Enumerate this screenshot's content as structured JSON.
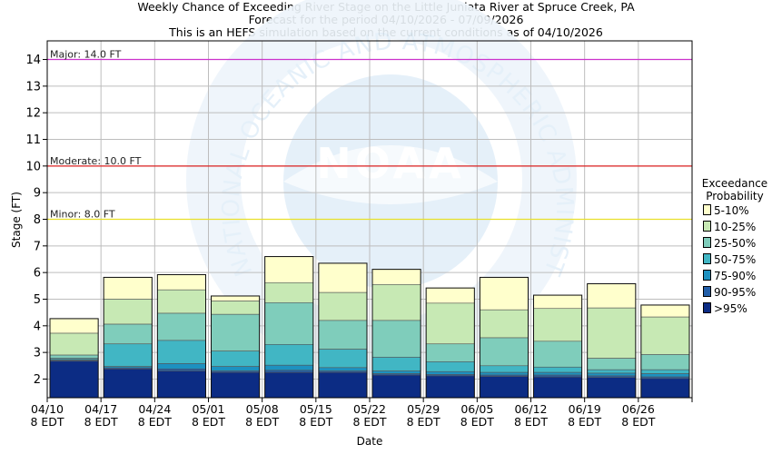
{
  "header": {
    "title_line1": "Weekly Chance of Exceeding River Stage on the Little Juniata River at Spruce Creek, PA",
    "title_line2": "Forecast for the period 04/10/2026 - 07/09/2026",
    "title_line3": "This is an HEFS simulation based on the current conditions as of 04/10/2026"
  },
  "watermark": {
    "arc_text_top": "NATIONAL OCEANIC AND ATMOSPHERIC ADMINISTRATION",
    "arc_text_left": "U.S. DEPARTMENT OF COMMERCE",
    "logo_text": "NOAA"
  },
  "legend": {
    "title_line1": "Exceedance",
    "title_line2": "Probability",
    "items": [
      {
        "label": "5-10%",
        "color": "#FFFFCC"
      },
      {
        "label": "10-25%",
        "color": "#C7E9B4"
      },
      {
        "label": "25-50%",
        "color": "#7FCDBB"
      },
      {
        "label": "50-75%",
        "color": "#41B6C4"
      },
      {
        "label": "75-90%",
        "color": "#1D91C0"
      },
      {
        "label": "90-95%",
        "color": "#225EA8"
      },
      {
        "label": ">95%",
        "color": "#0C2C84"
      }
    ]
  },
  "chart_data": {
    "type": "bar",
    "title": "Weekly Chance of Exceeding River Stage on the Little Juniata River at Spruce Creek, PA",
    "xlabel": "Date",
    "ylabel": "Stage (FT)",
    "ylim": [
      1.3,
      14.7
    ],
    "yticks": [
      2,
      3,
      4,
      5,
      6,
      7,
      8,
      9,
      10,
      11,
      12,
      13,
      14
    ],
    "grid": true,
    "legend_position": "right",
    "x_tick_labels": [
      {
        "line1": "04/10",
        "line2": "8 EDT"
      },
      {
        "line1": "04/17",
        "line2": "8 EDT"
      },
      {
        "line1": "04/24",
        "line2": "8 EDT"
      },
      {
        "line1": "05/01",
        "line2": "8 EDT"
      },
      {
        "line1": "05/08",
        "line2": "8 EDT"
      },
      {
        "line1": "05/15",
        "line2": "8 EDT"
      },
      {
        "line1": "05/22",
        "line2": "8 EDT"
      },
      {
        "line1": "05/29",
        "line2": "8 EDT"
      },
      {
        "line1": "06/05",
        "line2": "8 EDT"
      },
      {
        "line1": "06/12",
        "line2": "8 EDT"
      },
      {
        "line1": "06/19",
        "line2": "8 EDT"
      },
      {
        "line1": "06/26",
        "line2": "8 EDT"
      }
    ],
    "flood_levels": [
      {
        "label": "Major: 14.0 FT",
        "value": 14.0,
        "color": "#CC33CC"
      },
      {
        "label": "Moderate: 10.0 FT",
        "value": 10.0,
        "color": "#DD2222"
      },
      {
        "label": "Minor: 8.0 FT",
        "value": 8.0,
        "color": "#E8E02A"
      }
    ],
    "bands": [
      "5-10%",
      "10-25%",
      "25-50%",
      "50-75%",
      "75-90%",
      "90-95%",
      ">95%"
    ],
    "weeks": [
      {
        "week": "04/10",
        "stages": [
          4.27,
          3.72,
          2.9,
          2.78,
          2.73,
          2.7,
          2.67
        ]
      },
      {
        "week": "04/17",
        "stages": [
          5.82,
          5.0,
          4.06,
          3.32,
          2.47,
          2.42,
          2.38
        ]
      },
      {
        "week": "04/24",
        "stages": [
          5.92,
          5.35,
          4.47,
          3.45,
          2.58,
          2.38,
          2.3
        ]
      },
      {
        "week": "05/01",
        "stages": [
          5.12,
          4.93,
          4.43,
          3.05,
          2.47,
          2.3,
          2.25
        ]
      },
      {
        "week": "05/08",
        "stages": [
          6.6,
          5.62,
          4.87,
          3.3,
          2.52,
          2.33,
          2.25
        ]
      },
      {
        "week": "05/15",
        "stages": [
          6.35,
          5.25,
          4.2,
          3.12,
          2.43,
          2.3,
          2.25
        ]
      },
      {
        "week": "05/22",
        "stages": [
          6.12,
          5.55,
          4.2,
          2.82,
          2.3,
          2.2,
          2.15
        ]
      },
      {
        "week": "05/29",
        "stages": [
          5.42,
          4.85,
          3.32,
          2.65,
          2.28,
          2.17,
          2.12
        ]
      },
      {
        "week": "06/05",
        "stages": [
          5.82,
          4.6,
          3.55,
          2.5,
          2.25,
          2.15,
          2.1
        ]
      },
      {
        "week": "06/12",
        "stages": [
          5.15,
          4.65,
          3.42,
          2.45,
          2.25,
          2.15,
          2.08
        ]
      },
      {
        "week": "06/19",
        "stages": [
          5.58,
          4.67,
          2.78,
          2.35,
          2.22,
          2.12,
          2.06
        ]
      },
      {
        "week": "06/26",
        "stages": [
          4.78,
          4.33,
          2.92,
          2.35,
          2.2,
          2.08,
          2.02
        ]
      }
    ]
  }
}
